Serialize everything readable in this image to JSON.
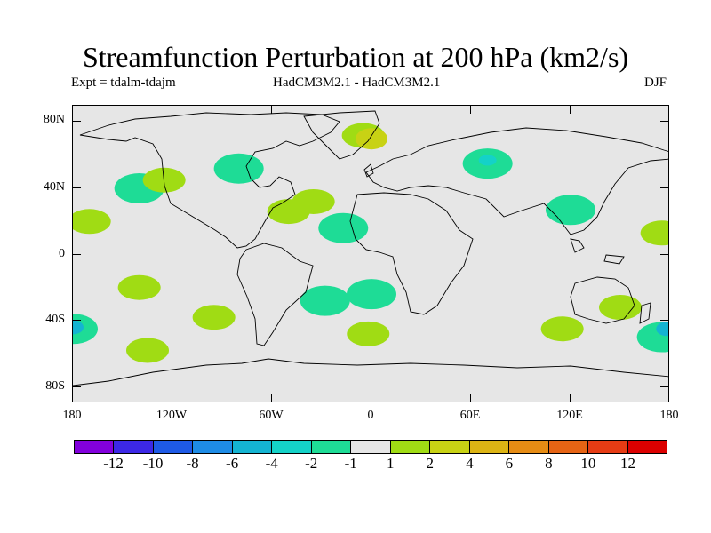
{
  "title": "Streamfunction Perturbation at 200 hPa (km2/s)",
  "subtitle": {
    "left": "Expt = tdalm-tdajm",
    "center": "HadCM3M2.1 - HadCM3M2.1",
    "right": "DJF"
  },
  "map": {
    "lat_labels": [
      "80N",
      "40N",
      "0",
      "40S",
      "80S"
    ],
    "lon_labels": [
      "180",
      "120W",
      "60W",
      "0",
      "60E",
      "120E",
      "180"
    ],
    "background_color": "#e6e6e6"
  },
  "colorbar": {
    "colors": [
      "#8200dc",
      "#3c28e6",
      "#1e5ae6",
      "#1e8ce6",
      "#14b4d2",
      "#14d2c8",
      "#1edc96",
      "#e6e6e6",
      "#a0dc14",
      "#c8d214",
      "#dcb414",
      "#e68c14",
      "#e66414",
      "#e63c14",
      "#dc0000"
    ],
    "labels": [
      "-12",
      "-10",
      "-8",
      "-6",
      "-4",
      "-2",
      "-1",
      "1",
      "2",
      "4",
      "6",
      "8",
      "10",
      "12"
    ]
  },
  "anomalies": [
    {
      "lon": -170,
      "lat": 20,
      "level": "2"
    },
    {
      "lon": -140,
      "lat": 40,
      "level": "-1"
    },
    {
      "lon": -125,
      "lat": 45,
      "level": "2"
    },
    {
      "lon": -80,
      "lat": 52,
      "level": "-1"
    },
    {
      "lon": -50,
      "lat": 26,
      "level": "2"
    },
    {
      "lon": -35,
      "lat": 32,
      "level": "2"
    },
    {
      "lon": -17,
      "lat": 16,
      "level": "-1"
    },
    {
      "lon": -5,
      "lat": 72,
      "level": "2"
    },
    {
      "lon": 0,
      "lat": 70,
      "level": "4"
    },
    {
      "lon": -140,
      "lat": -20,
      "level": "2"
    },
    {
      "lon": -180,
      "lat": -45,
      "level": "-1"
    },
    {
      "lon": -180,
      "lat": -44,
      "level": "-4"
    },
    {
      "lon": -135,
      "lat": -58,
      "level": "2"
    },
    {
      "lon": -95,
      "lat": -38,
      "level": "2"
    },
    {
      "lon": -28,
      "lat": -28,
      "level": "-1"
    },
    {
      "lon": 0,
      "lat": -24,
      "level": "-1"
    },
    {
      "lon": -2,
      "lat": -48,
      "level": "2"
    },
    {
      "lon": 70,
      "lat": 55,
      "level": "-1"
    },
    {
      "lon": 70,
      "lat": 57,
      "level": "-2"
    },
    {
      "lon": 120,
      "lat": 27,
      "level": "-1"
    },
    {
      "lon": 175,
      "lat": 13,
      "level": "2"
    },
    {
      "lon": 115,
      "lat": -45,
      "level": "2"
    },
    {
      "lon": 150,
      "lat": -32,
      "level": "2"
    },
    {
      "lon": 175,
      "lat": -50,
      "level": "-1"
    },
    {
      "lon": 178,
      "lat": -45,
      "level": "-4"
    }
  ]
}
